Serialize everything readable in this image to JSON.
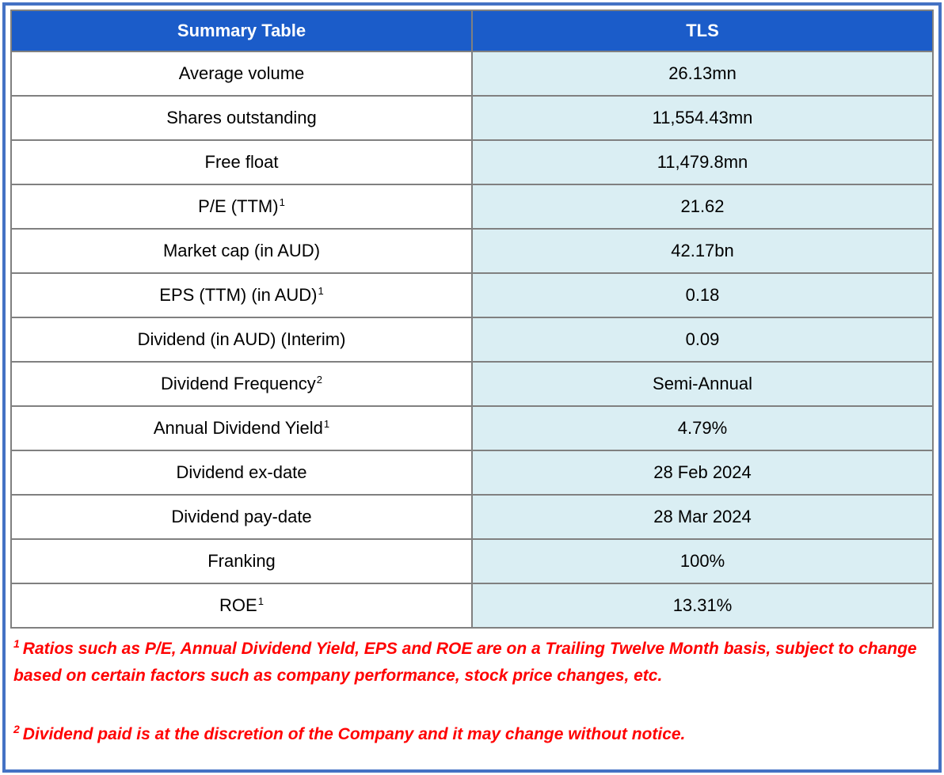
{
  "table": {
    "header": {
      "left": "Summary Table",
      "right": "TLS"
    },
    "rows": [
      {
        "label": "Average volume",
        "sup": "",
        "value": "26.13mn"
      },
      {
        "label": "Shares outstanding",
        "sup": "",
        "value": "11,554.43mn"
      },
      {
        "label": "Free float",
        "sup": "",
        "value": "11,479.8mn"
      },
      {
        "label": "P/E (TTM)",
        "sup": "1",
        "value": "21.62"
      },
      {
        "label": "Market cap (in AUD)",
        "sup": "",
        "value": "42.17bn"
      },
      {
        "label": "EPS (TTM) (in AUD)",
        "sup": "1",
        "value": "0.18"
      },
      {
        "label": "Dividend (in AUD) (Interim)",
        "sup": "",
        "value": "0.09"
      },
      {
        "label": "Dividend Frequency",
        "sup": "2",
        "value": "Semi-Annual"
      },
      {
        "label": "Annual Dividend Yield",
        "sup": "1",
        "value": "4.79%"
      },
      {
        "label": "Dividend ex-date",
        "sup": "",
        "value": "28 Feb 2024"
      },
      {
        "label": "Dividend pay-date",
        "sup": "",
        "value": "28 Mar 2024"
      },
      {
        "label": "Franking",
        "sup": "",
        "value": "100%"
      },
      {
        "label": "ROE",
        "sup": "1",
        "value": "13.31%"
      }
    ]
  },
  "footnotes": [
    {
      "sup": "1",
      "text": "Ratios such as P/E, Annual Dividend Yield, EPS and ROE are on a Trailing Twelve Month basis, subject to change based on certain factors such as company performance, stock price changes, etc."
    },
    {
      "sup": "2",
      "text": "Dividend paid is at the discretion of the Company and it may change without notice."
    }
  ],
  "colors": {
    "header_bg": "#1B5CC9",
    "header_text": "#FFFFFF",
    "value_cell_bg": "#DAEEF3",
    "cell_border": "#808080",
    "outer_border": "#4472C4",
    "footnote_color": "#FF0000",
    "body_text": "#000000"
  }
}
